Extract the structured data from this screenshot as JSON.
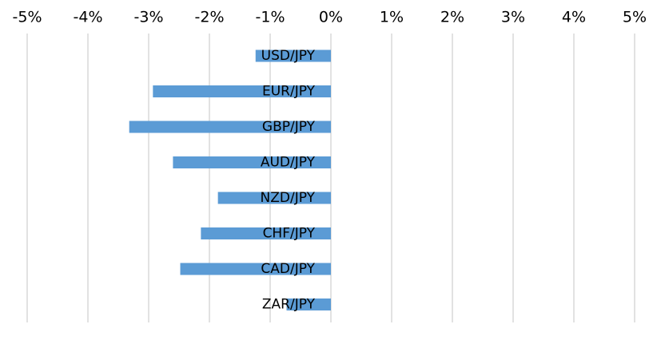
{
  "chart_data": {
    "type": "bar",
    "orientation": "horizontal",
    "categories": [
      "USD/JPY",
      "EUR/JPY",
      "GBP/JPY",
      "AUD/JPY",
      "NZD/JPY",
      "CHF/JPY",
      "CAD/JPY",
      "ZAR/JPY"
    ],
    "values": [
      -1.24,
      -2.93,
      -3.32,
      -2.6,
      -1.86,
      -2.14,
      -2.48,
      -0.73
    ],
    "unit": "%",
    "xlim": [
      -5,
      5
    ],
    "x_ticks": [
      "-5%",
      "-4%",
      "-3%",
      "-2%",
      "-1%",
      "0%",
      "1%",
      "2%",
      "3%",
      "4%",
      "5%"
    ],
    "x_axis_position": "top",
    "grid": "vertical",
    "bar_color": "#5b9bd5",
    "grid_color": "#d9d9d9",
    "legend": "none",
    "title": "",
    "xlabel": "",
    "ylabel": ""
  }
}
